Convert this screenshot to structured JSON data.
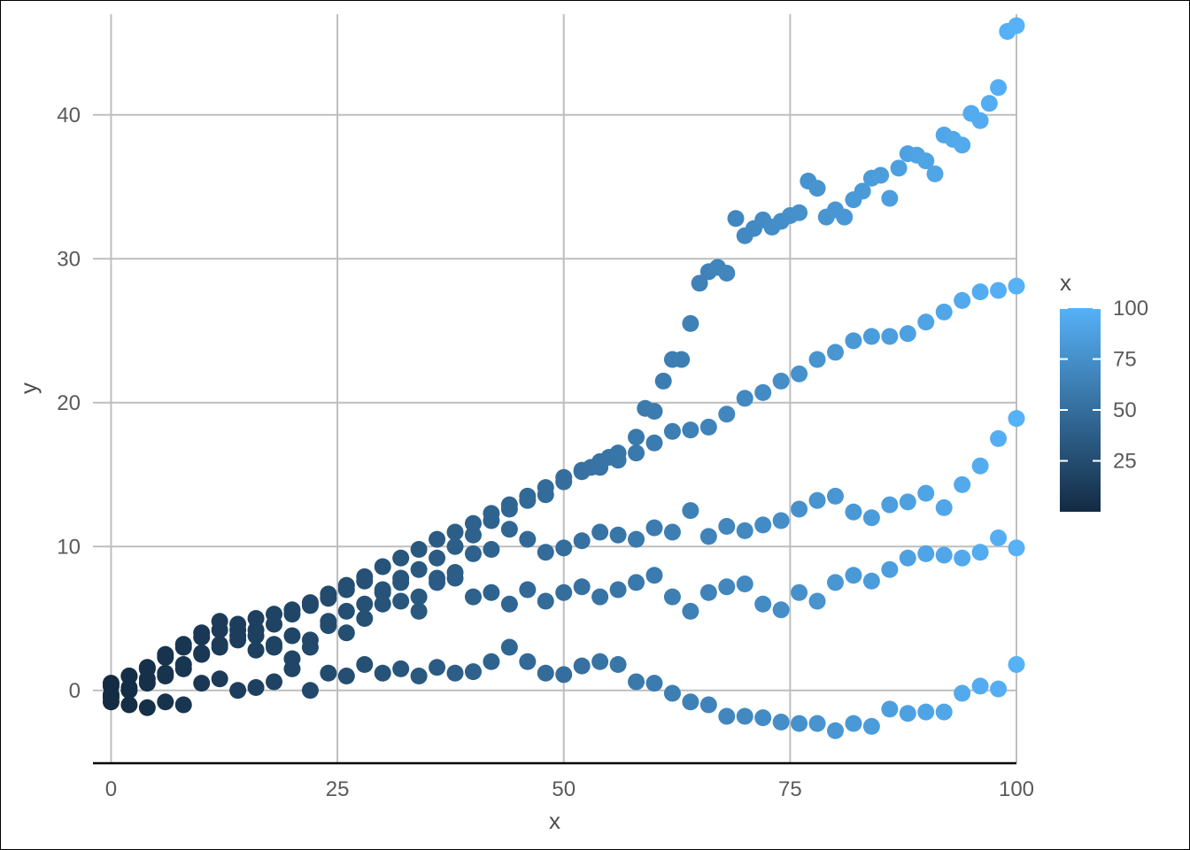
{
  "chart_data": {
    "type": "scatter",
    "title": "",
    "xlabel": "x",
    "ylabel": "y",
    "xlim": [
      -2,
      100
    ],
    "ylim": [
      -5,
      47
    ],
    "x_ticks": [
      0,
      25,
      50,
      75,
      100
    ],
    "x_tick_labels": [
      "0",
      "25",
      "50",
      "75",
      "100"
    ],
    "y_ticks": [
      0,
      10,
      20,
      30,
      40
    ],
    "y_tick_labels": [
      "0",
      "10",
      "20",
      "30",
      "40"
    ],
    "grid": true,
    "color_by": "x",
    "color_low": "#132B43",
    "color_high": "#56B1F7",
    "legend": {
      "title": "x",
      "placement": "right",
      "range": [
        0,
        100
      ],
      "ticks": [
        25,
        50,
        75,
        100
      ],
      "tick_labels": [
        "25",
        "50",
        "75",
        "100"
      ]
    },
    "series": [
      {
        "x": [
          0,
          2,
          4,
          6,
          8,
          10,
          12,
          14,
          16,
          18,
          20,
          22,
          24,
          26,
          28,
          30,
          32,
          34,
          36,
          38,
          40,
          42,
          44,
          46,
          48,
          50,
          52,
          54,
          56,
          58,
          60,
          62,
          64,
          66,
          68,
          70,
          72,
          74,
          76,
          78,
          80,
          82,
          84,
          86,
          88,
          90,
          92,
          94,
          96,
          98,
          100
        ],
        "y": [
          0.5,
          1.0,
          1.6,
          2.3,
          3.0,
          3.7,
          4.2,
          4.6,
          5.0,
          5.3,
          5.6,
          6.1,
          6.7,
          7.3,
          7.9,
          8.6,
          9.2,
          9.8,
          10.5,
          11.0,
          11.6,
          12.3,
          12.9,
          13.5,
          14.1,
          14.8,
          15.3,
          15.5,
          16.0,
          16.5,
          17.2,
          18.0,
          18.1,
          18.3,
          19.2,
          20.3,
          20.7,
          21.5,
          22.0,
          23.0,
          23.5,
          24.3,
          24.6,
          24.6,
          24.8,
          25.6,
          26.3,
          27.1,
          27.7,
          27.8,
          28.1
        ]
      },
      {
        "x": [
          0,
          2,
          4,
          6,
          8,
          10,
          12,
          14,
          16,
          18,
          20,
          22,
          24,
          26,
          28,
          30,
          32,
          34,
          36,
          38,
          40,
          42,
          44,
          46,
          48,
          50,
          52,
          53,
          54,
          55,
          56,
          58,
          59,
          60,
          61,
          62,
          63,
          64,
          65,
          66,
          67,
          68,
          69,
          70,
          71,
          72,
          73,
          74,
          75,
          76,
          77,
          78,
          79,
          80,
          81,
          82,
          83,
          84,
          85,
          86,
          87,
          88,
          89,
          90,
          91,
          92,
          93,
          94,
          95,
          96,
          97,
          98,
          99,
          100
        ],
        "y": [
          0.3,
          1.0,
          1.5,
          2.5,
          3.2,
          4.0,
          4.8,
          4.2,
          3.8,
          4.6,
          5.3,
          5.9,
          6.4,
          7.0,
          7.6,
          7.0,
          7.8,
          8.4,
          9.2,
          10.0,
          10.8,
          11.8,
          12.6,
          13.2,
          13.6,
          14.5,
          15.2,
          15.5,
          15.9,
          16.2,
          16.5,
          17.6,
          19.6,
          19.4,
          21.5,
          23.0,
          23.0,
          25.5,
          28.3,
          29.1,
          29.4,
          29.0,
          32.8,
          31.6,
          32.1,
          32.7,
          32.2,
          32.6,
          33.0,
          33.2,
          35.4,
          34.9,
          32.9,
          33.4,
          32.9,
          34.1,
          34.7,
          35.6,
          35.8,
          34.2,
          36.3,
          37.3,
          37.2,
          36.8,
          35.9,
          38.6,
          38.3,
          37.9,
          40.1,
          39.6,
          40.8,
          41.9,
          45.8,
          46.2
        ]
      },
      {
        "x": [
          0,
          2,
          4,
          6,
          8,
          10,
          12,
          14,
          16,
          18,
          20,
          22,
          24,
          26,
          28,
          30,
          32,
          34,
          36,
          38,
          40,
          42,
          44,
          46,
          48,
          50,
          52,
          54,
          56,
          58,
          60,
          62,
          64,
          66,
          68,
          70,
          72,
          74,
          76,
          78,
          80,
          82,
          84,
          86,
          88,
          90,
          92,
          94,
          96,
          98,
          100
        ],
        "y": [
          -0.5,
          0.0,
          0.5,
          1.0,
          1.5,
          2.5,
          3.2,
          3.8,
          4.2,
          3.0,
          2.2,
          3.5,
          4.8,
          5.5,
          6.0,
          6.8,
          7.5,
          6.5,
          7.8,
          8.2,
          9.5,
          9.8,
          11.2,
          10.5,
          9.6,
          9.9,
          10.4,
          11.0,
          10.8,
          10.5,
          11.3,
          11.0,
          12.5,
          10.7,
          11.4,
          11.1,
          11.5,
          11.8,
          12.6,
          13.2,
          13.5,
          12.4,
          12.0,
          12.9,
          13.1,
          13.7,
          12.7,
          14.3,
          15.6,
          17.5,
          18.9
        ]
      },
      {
        "x": [
          0,
          2,
          4,
          6,
          8,
          10,
          12,
          14,
          16,
          18,
          20,
          22,
          24,
          26,
          28,
          30,
          32,
          34,
          36,
          38,
          40,
          42,
          44,
          46,
          48,
          50,
          52,
          54,
          56,
          58,
          60,
          62,
          64,
          66,
          68,
          70,
          72,
          74,
          76,
          78,
          80,
          82,
          84,
          86,
          88,
          90,
          92,
          94,
          96,
          98,
          100
        ],
        "y": [
          -0.3,
          0.2,
          0.8,
          1.2,
          1.8,
          2.6,
          3.0,
          3.5,
          2.8,
          3.2,
          3.8,
          3.0,
          4.5,
          4.0,
          5.0,
          6.0,
          6.2,
          5.5,
          7.5,
          7.8,
          6.5,
          6.8,
          6.0,
          7.0,
          6.2,
          6.8,
          7.2,
          6.5,
          7.0,
          7.5,
          8.0,
          6.5,
          5.5,
          6.8,
          7.2,
          7.4,
          6.0,
          5.6,
          6.8,
          6.2,
          7.5,
          8.0,
          7.6,
          8.4,
          9.2,
          9.5,
          9.4,
          9.2,
          9.6,
          10.6,
          9.9
        ]
      },
      {
        "x": [
          0,
          2,
          4,
          6,
          8,
          10,
          12,
          14,
          16,
          18,
          20,
          22,
          24,
          26,
          28,
          30,
          32,
          34,
          36,
          38,
          40,
          42,
          44,
          46,
          48,
          50,
          52,
          54,
          56,
          58,
          60,
          62,
          64,
          66,
          68,
          70,
          72,
          74,
          76,
          78,
          80,
          82,
          84,
          86,
          88,
          90,
          92,
          94,
          96,
          98,
          100
        ],
        "y": [
          -0.8,
          -1.0,
          -1.2,
          -0.8,
          -1.0,
          0.5,
          0.8,
          0.0,
          0.2,
          0.6,
          1.5,
          0.0,
          1.2,
          1.0,
          1.8,
          1.2,
          1.5,
          1.0,
          1.6,
          1.2,
          1.3,
          2.0,
          3.0,
          2.0,
          1.2,
          1.1,
          1.7,
          2.0,
          1.8,
          0.6,
          0.5,
          -0.2,
          -0.8,
          -1.0,
          -1.8,
          -1.8,
          -1.9,
          -2.2,
          -2.3,
          -2.3,
          -2.8,
          -2.3,
          -2.5,
          -1.3,
          -1.6,
          -1.5,
          -1.5,
          -0.2,
          0.3,
          0.1,
          1.8
        ]
      }
    ]
  }
}
